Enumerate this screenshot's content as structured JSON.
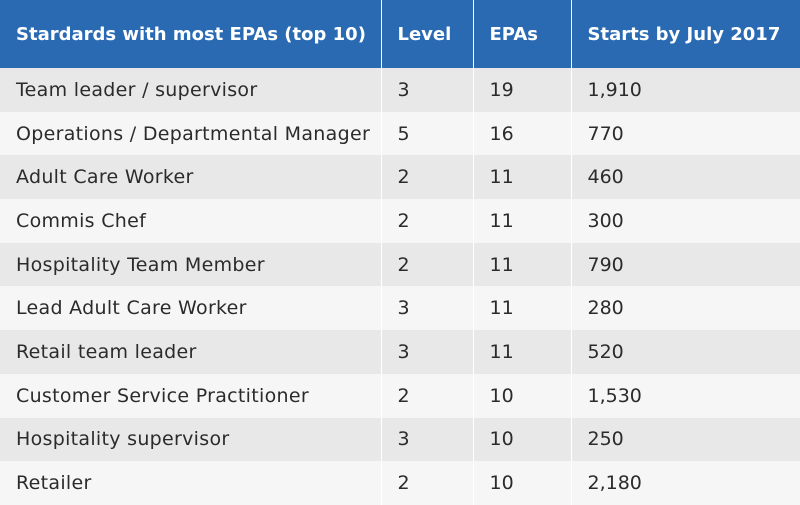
{
  "table": {
    "header_bg": "#2a6ab3",
    "columns": [
      "Stardards with most EPAs (top 10)",
      "Level",
      "EPAs",
      "Starts by July 2017"
    ],
    "rows": [
      [
        "Team leader / supervisor",
        "3",
        "19",
        "1,910"
      ],
      [
        "Operations / Departmental Manager",
        "5",
        "16",
        "770"
      ],
      [
        "Adult Care Worker",
        "2",
        "11",
        "460"
      ],
      [
        "Commis Chef",
        "2",
        "11",
        "300"
      ],
      [
        "Hospitality Team Member",
        "2",
        "11",
        "790"
      ],
      [
        "Lead Adult Care Worker",
        "3",
        "11",
        "280"
      ],
      [
        "Retail team leader",
        "3",
        "11",
        "520"
      ],
      [
        "Customer Service Practitioner",
        "2",
        "10",
        "1,530"
      ],
      [
        "Hospitality supervisor",
        "3",
        "10",
        "250"
      ],
      [
        "Retailer",
        "2",
        "10",
        "2,180"
      ]
    ]
  }
}
